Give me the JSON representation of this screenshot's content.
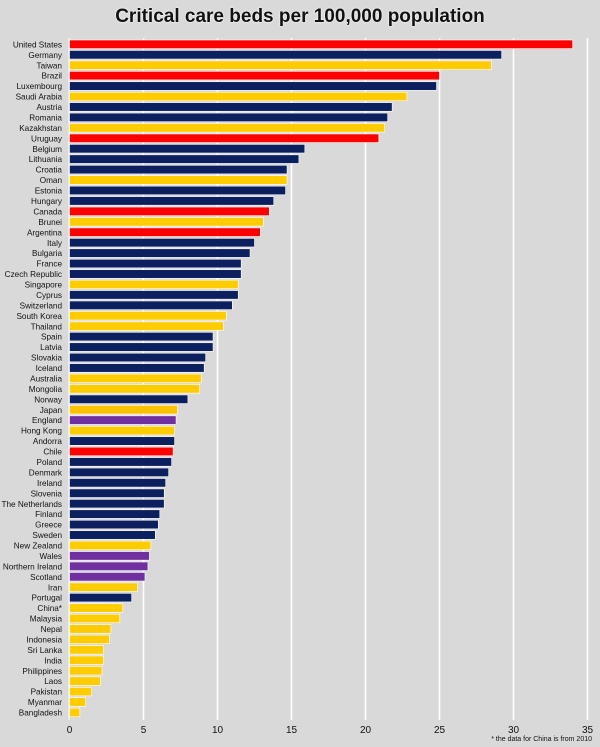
{
  "chart_data": {
    "type": "bar",
    "orientation": "horizontal",
    "title": "Critical care beds per 100,000 population",
    "xlabel": "",
    "ylabel": "",
    "xlim": [
      0,
      35
    ],
    "xticks": [
      0,
      5,
      10,
      15,
      20,
      25,
      30,
      35
    ],
    "grid": "vertical",
    "legend": "none",
    "note": "* the data for China is from 2010",
    "colors": {
      "americas": "#ff0000",
      "europe": "#0c1f5e",
      "asia": "#ffcc00",
      "japan": "#ffc000",
      "uk": "#7030a0"
    },
    "categories": [
      "United States",
      "Germany",
      "Taiwan",
      "Brazil",
      "Luxembourg",
      "Saudi Arabia",
      "Austria",
      "Romania",
      "Kazakhstan",
      "Uruguay",
      "Belgium",
      "Lithuania",
      "Croatia",
      "Oman",
      "Estonia",
      "Hungary",
      "Canada",
      "Brunei",
      "Argentina",
      "Italy",
      "Bulgaria",
      "France",
      "Czech Republic",
      "Singapore",
      "Cyprus",
      "Switzerland",
      "South Korea",
      "Thailand",
      "Spain",
      "Latvia",
      "Slovakia",
      "Iceland",
      "Australia",
      "Mongolia",
      "Norway",
      "Japan",
      "England",
      "Hong Kong",
      "Andorra",
      "Chile",
      "Poland",
      "Denmark",
      "Ireland",
      "Slovenia",
      "The Netherlands",
      "Finland",
      "Greece",
      "Sweden",
      "New Zealand",
      "Wales",
      "Northern Ireland",
      "Scotland",
      "Iran",
      "Portugal",
      "China*",
      "Malaysia",
      "Nepal",
      "Indonesia",
      "Sri Lanka",
      "India",
      "Philippines",
      "Laos",
      "Pakistan",
      "Myanmar",
      "Bangladesh"
    ],
    "values": [
      34.0,
      29.2,
      28.5,
      25.0,
      24.8,
      22.8,
      21.8,
      21.5,
      21.3,
      20.9,
      15.9,
      15.5,
      14.7,
      14.7,
      14.6,
      13.8,
      13.5,
      13.1,
      12.9,
      12.5,
      12.2,
      11.6,
      11.6,
      11.4,
      11.4,
      11.0,
      10.6,
      10.4,
      9.7,
      9.7,
      9.2,
      9.1,
      8.9,
      8.8,
      8.0,
      7.3,
      7.2,
      7.1,
      7.1,
      7.0,
      6.9,
      6.7,
      6.5,
      6.4,
      6.4,
      6.1,
      6.0,
      5.8,
      5.5,
      5.4,
      5.3,
      5.1,
      4.6,
      4.2,
      3.6,
      3.4,
      2.8,
      2.7,
      2.3,
      2.3,
      2.2,
      2.1,
      1.5,
      1.1,
      0.7
    ],
    "groups": [
      "americas",
      "europe",
      "asia",
      "americas",
      "europe",
      "asia",
      "europe",
      "europe",
      "asia",
      "americas",
      "europe",
      "europe",
      "europe",
      "asia",
      "europe",
      "europe",
      "americas",
      "asia",
      "americas",
      "europe",
      "europe",
      "europe",
      "europe",
      "asia",
      "europe",
      "europe",
      "asia",
      "asia",
      "europe",
      "europe",
      "europe",
      "europe",
      "asia",
      "asia",
      "europe",
      "japan",
      "uk",
      "asia",
      "europe",
      "americas",
      "europe",
      "europe",
      "europe",
      "europe",
      "europe",
      "europe",
      "europe",
      "europe",
      "asia",
      "uk",
      "uk",
      "uk",
      "asia",
      "europe",
      "asia",
      "asia",
      "asia",
      "asia",
      "asia",
      "asia",
      "asia",
      "asia",
      "asia",
      "asia",
      "asia"
    ]
  }
}
